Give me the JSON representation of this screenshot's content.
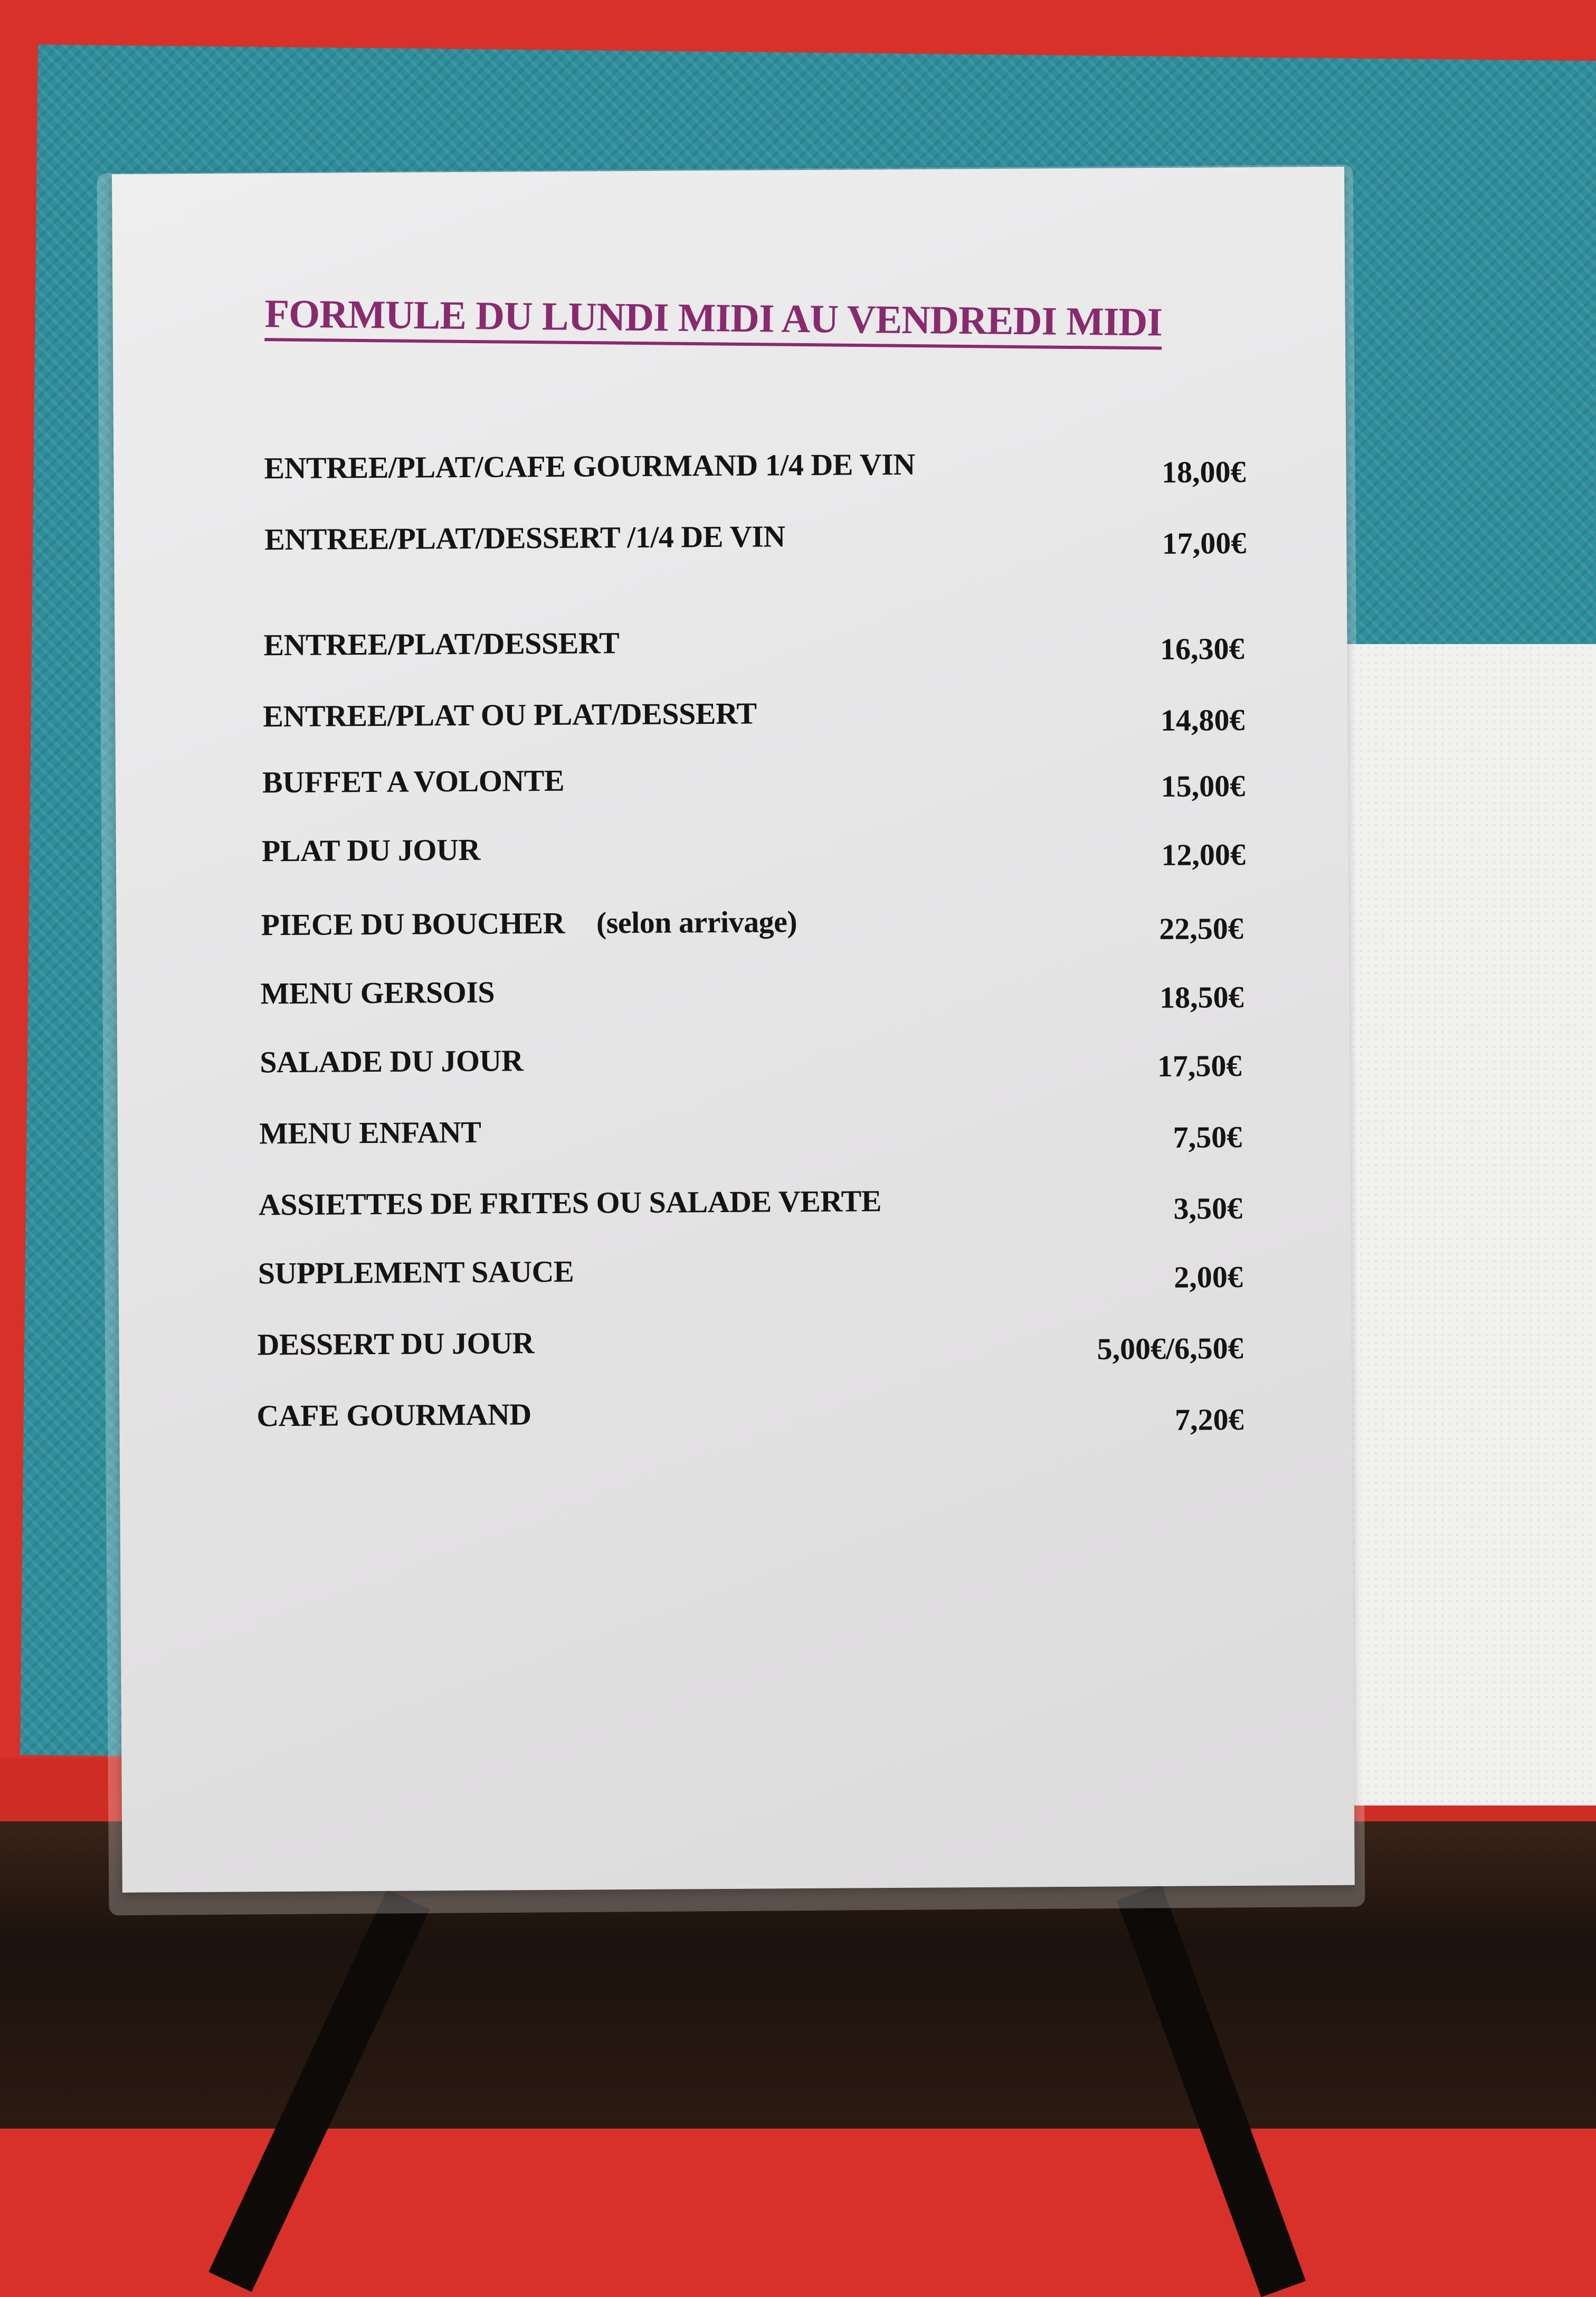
{
  "menu": {
    "title": "FORMULE DU LUNDI MIDI AU VENDREDI MIDI",
    "title_color": "#8a2a6e",
    "items": [
      {
        "label": "ENTREE/PLAT/CAFE GOURMAND 1/4 DE VIN",
        "note": "",
        "price": "18,00€"
      },
      {
        "label": "ENTREE/PLAT/DESSERT /1/4 DE VIN",
        "note": "",
        "price": "17,00€"
      },
      {
        "label": "ENTREE/PLAT/DESSERT",
        "note": "",
        "price": "16,30€"
      },
      {
        "label": "ENTREE/PLAT OU PLAT/DESSERT",
        "note": "",
        "price": "14,80€"
      },
      {
        "label": "BUFFET A VOLONTE",
        "note": "",
        "price": "15,00€"
      },
      {
        "label": "PLAT DU JOUR",
        "note": "",
        "price": "12,00€"
      },
      {
        "label": "PIECE DU BOUCHER",
        "note": "(selon arrivage)",
        "price": "22,50€"
      },
      {
        "label": "MENU GERSOIS",
        "note": "",
        "price": "18,50€"
      },
      {
        "label": "SALADE DU JOUR",
        "note": "",
        "price": "17,50€"
      },
      {
        "label": "MENU ENFANT",
        "note": "",
        "price": "7,50€"
      },
      {
        "label": "ASSIETTES DE FRITES OU SALADE VERTE",
        "note": "",
        "price": "3,50€"
      },
      {
        "label": "SUPPLEMENT SAUCE",
        "note": "",
        "price": "2,00€"
      },
      {
        "label": "DESSERT DU JOUR",
        "note": "",
        "price": "5,00€/6,50€"
      },
      {
        "label": "CAFE GOURMAND",
        "note": "",
        "price": "7,20€"
      }
    ]
  }
}
